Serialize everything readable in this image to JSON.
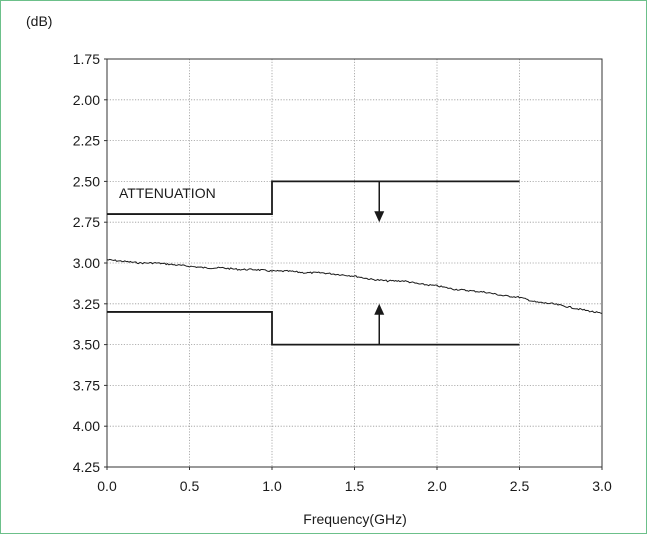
{
  "chart_data": {
    "type": "line",
    "title": "",
    "xlabel": "Frequency(GHz)",
    "ylabel": "(dB)",
    "xlim": [
      0.0,
      3.0
    ],
    "ylim": [
      1.75,
      4.25
    ],
    "y_inverted": true,
    "grid": true,
    "x_ticks": [
      "0.0",
      "0.5",
      "1.0",
      "1.5",
      "2.0",
      "2.5",
      "3.0"
    ],
    "y_ticks": [
      "1.75",
      "2.00",
      "2.25",
      "2.50",
      "2.75",
      "3.00",
      "3.25",
      "3.50",
      "3.75",
      "4.00",
      "4.25"
    ],
    "annotation": "ATTENUATION",
    "series": [
      {
        "x": [
          0.0,
          0.1,
          0.2,
          0.3,
          0.4,
          0.5,
          0.6,
          0.7,
          0.8,
          0.9,
          1.0,
          1.1,
          1.2,
          1.3,
          1.4,
          1.5,
          1.6,
          1.7,
          1.8,
          1.9,
          2.0,
          2.1,
          2.2,
          2.3,
          2.4,
          2.5,
          2.6,
          2.7,
          2.8,
          2.9,
          3.0
        ],
        "values": [
          2.98,
          2.99,
          3.0,
          3.0,
          3.01,
          3.02,
          3.03,
          3.03,
          3.04,
          3.04,
          3.05,
          3.05,
          3.06,
          3.06,
          3.07,
          3.08,
          3.1,
          3.11,
          3.11,
          3.13,
          3.14,
          3.16,
          3.17,
          3.18,
          3.2,
          3.21,
          3.24,
          3.25,
          3.27,
          3.29,
          3.31
        ]
      },
      {
        "x": [
          0.0,
          1.0,
          1.0,
          2.5
        ],
        "values": [
          2.7,
          2.7,
          2.5,
          2.5
        ]
      },
      {
        "x": [
          0.0,
          1.0,
          1.0,
          2.5
        ],
        "values": [
          3.3,
          3.3,
          3.5,
          3.5
        ]
      }
    ],
    "arrows": [
      {
        "x": 1.65,
        "from": 2.5,
        "to": 2.75
      },
      {
        "x": 1.65,
        "from": 3.5,
        "to": 3.25
      }
    ]
  }
}
